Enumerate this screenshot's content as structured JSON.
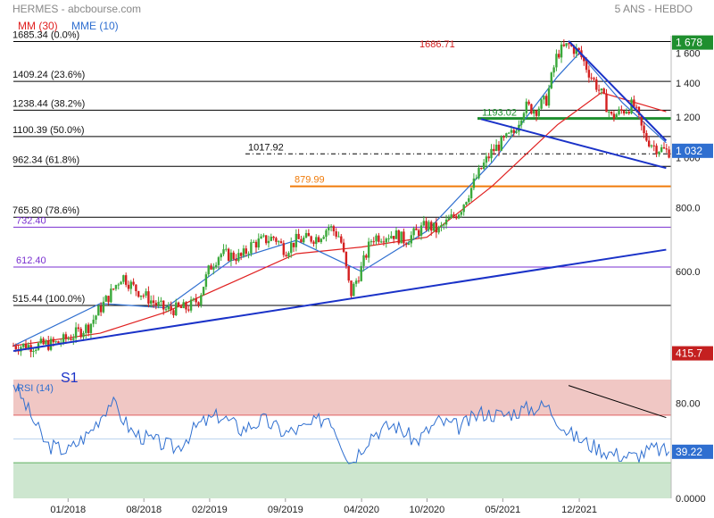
{
  "header": {
    "title": "HERMES - abcbourse.com",
    "period": "5 ANS - HEBDO",
    "mm_label": "MM (30)",
    "mme_label": "MME (10)"
  },
  "colors": {
    "candle_up": "#3aa83a",
    "candle_down": "#d42020",
    "mm": "#e02020",
    "mme": "#2f6fd0",
    "trend": "#1a32c8",
    "fib_line": "#000000",
    "green_level": "#1f8f2f",
    "orange_level": "#f07b0a",
    "purple_level": "#7a2fd0",
    "rsi_line": "#2f6fd0",
    "rsi_over": "#f0c7c4",
    "rsi_under": "#cde6cf"
  },
  "chart_data": [
    {
      "type": "line",
      "title": "HERMES - abcbourse.com",
      "subtitle": "5 ANS - HEBDO",
      "x_ticks": [
        "01/2018",
        "08/2018",
        "02/2019",
        "09/2019",
        "04/2020",
        "10/2020",
        "05/2021",
        "12/2021"
      ],
      "y_ticks": [
        600,
        800,
        1000,
        1200,
        1400,
        1600
      ],
      "y_tick_labels": [
        "600.0",
        "800.0",
        "1 000",
        "1 200",
        "1 400",
        "1 600"
      ],
      "ylim": [
        380,
        1730
      ],
      "scale": "log",
      "grid": false,
      "legend": "top-left",
      "series": [
        {
          "name": "HERMES",
          "style": "candlestick",
          "dates": [
            "2017-08",
            "2017-10",
            "2017-12",
            "2018-01",
            "2018-03",
            "2018-05",
            "2018-06",
            "2018-07",
            "2018-08",
            "2018-09",
            "2018-10",
            "2018-12",
            "2019-01",
            "2019-02",
            "2019-03",
            "2019-05",
            "2019-06",
            "2019-08",
            "2019-09",
            "2019-10",
            "2019-12",
            "2020-01",
            "2020-02",
            "2020-03",
            "2020-04",
            "2020-05",
            "2020-07",
            "2020-08",
            "2020-10",
            "2020-11",
            "2021-01",
            "2021-02",
            "2021-03",
            "2021-04",
            "2021-06",
            "2021-07",
            "2021-08",
            "2021-09",
            "2021-10",
            "2021-11",
            "2021-12",
            "2022-01",
            "2022-02",
            "2022-03",
            "2022-05",
            "2022-06",
            "2022-07",
            "2022-08"
          ],
          "values": [
            430,
            430,
            435,
            445,
            470,
            545,
            590,
            560,
            540,
            520,
            505,
            510,
            530,
            610,
            650,
            640,
            680,
            700,
            660,
            690,
            700,
            735,
            700,
            540,
            610,
            700,
            710,
            690,
            740,
            720,
            790,
            870,
            950,
            1030,
            1120,
            1260,
            1240,
            1300,
            1600,
            1660,
            1600,
            1450,
            1330,
            1200,
            1270,
            1100,
            1050,
            1030
          ]
        },
        {
          "name": "MM (30)",
          "style": "line",
          "dates": [
            "2017-08",
            "2018-04",
            "2018-10",
            "2019-04",
            "2019-10",
            "2020-04",
            "2020-10",
            "2021-04",
            "2021-10",
            "2022-02",
            "2022-08"
          ],
          "values": [
            430,
            455,
            500,
            570,
            650,
            670,
            700,
            880,
            1160,
            1340,
            1230
          ]
        },
        {
          "name": "MME (10)",
          "style": "line",
          "dates": [
            "2017-08",
            "2018-04",
            "2018-10",
            "2019-04",
            "2019-10",
            "2020-04",
            "2020-10",
            "2021-04",
            "2021-10",
            "2021-12",
            "2022-04",
            "2022-08"
          ],
          "values": [
            430,
            520,
            510,
            630,
            690,
            600,
            720,
            980,
            1440,
            1600,
            1280,
            1070
          ]
        }
      ],
      "fibonacci": {
        "levels": [
          {
            "label": "1685.34  (0.0%)",
            "value": 1685.34
          },
          {
            "label": "1409.24  (23.6%)",
            "value": 1409.24
          },
          {
            "label": "1238.44  (38.2%)",
            "value": 1238.44
          },
          {
            "label": "1100.39  (50.0%)",
            "value": 1100.39
          },
          {
            "label": "962.34  (61.8%)",
            "value": 962.34
          },
          {
            "label": "765.80  (78.6%)",
            "value": 765.8
          },
          {
            "label": "515.44  (100.0%)",
            "value": 515.44
          }
        ]
      },
      "annotations": {
        "high": "1686.71",
        "green_level": "1193.02",
        "dash_level": "1017.92",
        "orange_level": "879.99",
        "purple_levels": [
          "732.40",
          "612.40"
        ],
        "s1": "S1",
        "tags": [
          {
            "text": "1 678",
            "value": 1678,
            "color": "#1f8f2f"
          },
          {
            "text": "1 032",
            "value": 1032,
            "color": "#2f6fd0"
          },
          {
            "text": "415.7",
            "value": 415.7,
            "color": "#c42020"
          }
        ]
      },
      "trendlines": [
        "channel-upper",
        "channel-lower",
        "long-term-support"
      ]
    },
    {
      "type": "line",
      "title": "RSI (14)",
      "ylim": [
        0,
        100
      ],
      "y_ticks": [
        0,
        80
      ],
      "y_tick_labels": [
        "0.0000",
        "80.00"
      ],
      "overbought": 70,
      "oversold": 30,
      "current_label": "39.22",
      "series": [
        {
          "name": "RSI (14)",
          "dates": [
            "2017-08",
            "2017-11",
            "2018-01",
            "2018-03",
            "2018-05",
            "2018-07",
            "2018-09",
            "2018-11",
            "2019-01",
            "2019-03",
            "2019-05",
            "2019-07",
            "2019-09",
            "2019-11",
            "2020-01",
            "2020-03",
            "2020-05",
            "2020-07",
            "2020-09",
            "2020-11",
            "2021-01",
            "2021-03",
            "2021-05",
            "2021-07",
            "2021-09",
            "2021-11",
            "2022-01",
            "2022-03",
            "2022-05",
            "2022-07",
            "2022-08"
          ],
          "values": [
            98,
            45,
            40,
            55,
            82,
            55,
            48,
            42,
            62,
            70,
            58,
            66,
            55,
            60,
            70,
            30,
            55,
            62,
            48,
            65,
            60,
            72,
            70,
            75,
            78,
            55,
            45,
            38,
            35,
            42,
            39.22
          ]
        }
      ]
    }
  ]
}
